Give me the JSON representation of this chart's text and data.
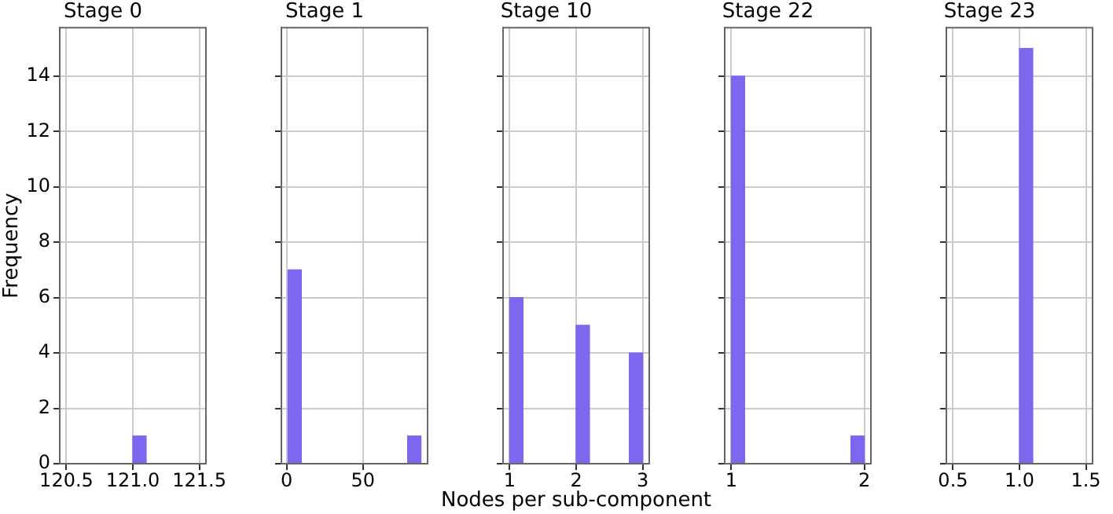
{
  "chart_data": [
    {
      "type": "histogram",
      "title": "Stage 0",
      "ylabel": "Frequency",
      "color": "#7b68ee",
      "bins": [
        120.5,
        120.6,
        120.7,
        120.8,
        120.9,
        121.0,
        121.1,
        121.2,
        121.3,
        121.4,
        121.5
      ],
      "values": [
        0,
        0,
        0,
        0,
        0,
        1,
        0,
        0,
        0,
        0
      ],
      "xlim": [
        120.45,
        121.55
      ],
      "xticks": [
        120.5,
        {
          "value": 121,
          "label": "121.0"
        },
        121.5
      ],
      "ylim": [
        0,
        15.75
      ],
      "yticks": [
        0,
        2,
        4,
        6,
        8,
        10,
        12,
        14
      ],
      "grid": true
    },
    {
      "type": "histogram",
      "title": "Stage 1",
      "color": "#7b68ee",
      "bins": [
        1,
        9.7,
        18.4,
        27.1,
        35.8,
        44.5,
        53.2,
        61.9,
        70.6,
        79.3,
        88
      ],
      "values": [
        7,
        0,
        0,
        0,
        0,
        0,
        0,
        0,
        0,
        1
      ],
      "xlim": [
        -3.35,
        92.35
      ],
      "xticks": [
        0,
        50
      ],
      "ylim": [
        0,
        15.75
      ],
      "yticks": [
        0,
        2,
        4,
        6,
        8,
        10,
        12,
        14
      ],
      "grid": true,
      "tick_labels": "x"
    },
    {
      "type": "histogram",
      "title": "Stage 10",
      "xlabel": "Nodes per sub-component",
      "color": "#7b68ee",
      "bins": [
        1,
        1.2,
        1.4,
        1.6,
        1.8,
        2,
        2.2,
        2.4,
        2.6,
        2.8,
        3
      ],
      "values": [
        6,
        0,
        0,
        0,
        0,
        5,
        0,
        0,
        0,
        4
      ],
      "xlim": [
        0.9,
        3.1
      ],
      "xticks": [
        1,
        2,
        3
      ],
      "ylim": [
        0,
        15.75
      ],
      "yticks": [
        0,
        2,
        4,
        6,
        8,
        10,
        12,
        14
      ],
      "grid": true,
      "tick_labels": "x"
    },
    {
      "type": "histogram",
      "title": "Stage 22",
      "color": "#7b68ee",
      "bins": [
        1,
        1.1,
        1.2,
        1.3,
        1.4,
        1.5,
        1.6,
        1.7,
        1.8,
        1.9,
        2
      ],
      "values": [
        14,
        0,
        0,
        0,
        0,
        0,
        0,
        0,
        0,
        1
      ],
      "xlim": [
        0.95,
        2.05
      ],
      "xticks": [
        1,
        2
      ],
      "ylim": [
        0,
        15.75
      ],
      "yticks": [
        0,
        2,
        4,
        6,
        8,
        10,
        12,
        14
      ],
      "grid": true,
      "tick_labels": "x"
    },
    {
      "type": "histogram",
      "title": "Stage 23",
      "color": "#7b68ee",
      "bins": [
        0.5,
        0.6,
        0.7,
        0.8,
        0.9,
        1.0,
        1.1,
        1.2,
        1.3,
        1.4,
        1.5
      ],
      "values": [
        0,
        0,
        0,
        0,
        0,
        15,
        0,
        0,
        0,
        0
      ],
      "xlim": [
        0.45,
        1.55
      ],
      "xticks": [
        0.5,
        {
          "value": 1,
          "label": "1.0"
        },
        1.5
      ],
      "ylim": [
        0,
        15.75
      ],
      "yticks": [
        0,
        2,
        4,
        6,
        8,
        10,
        12,
        14
      ],
      "grid": true,
      "tick_labels": "x"
    }
  ]
}
